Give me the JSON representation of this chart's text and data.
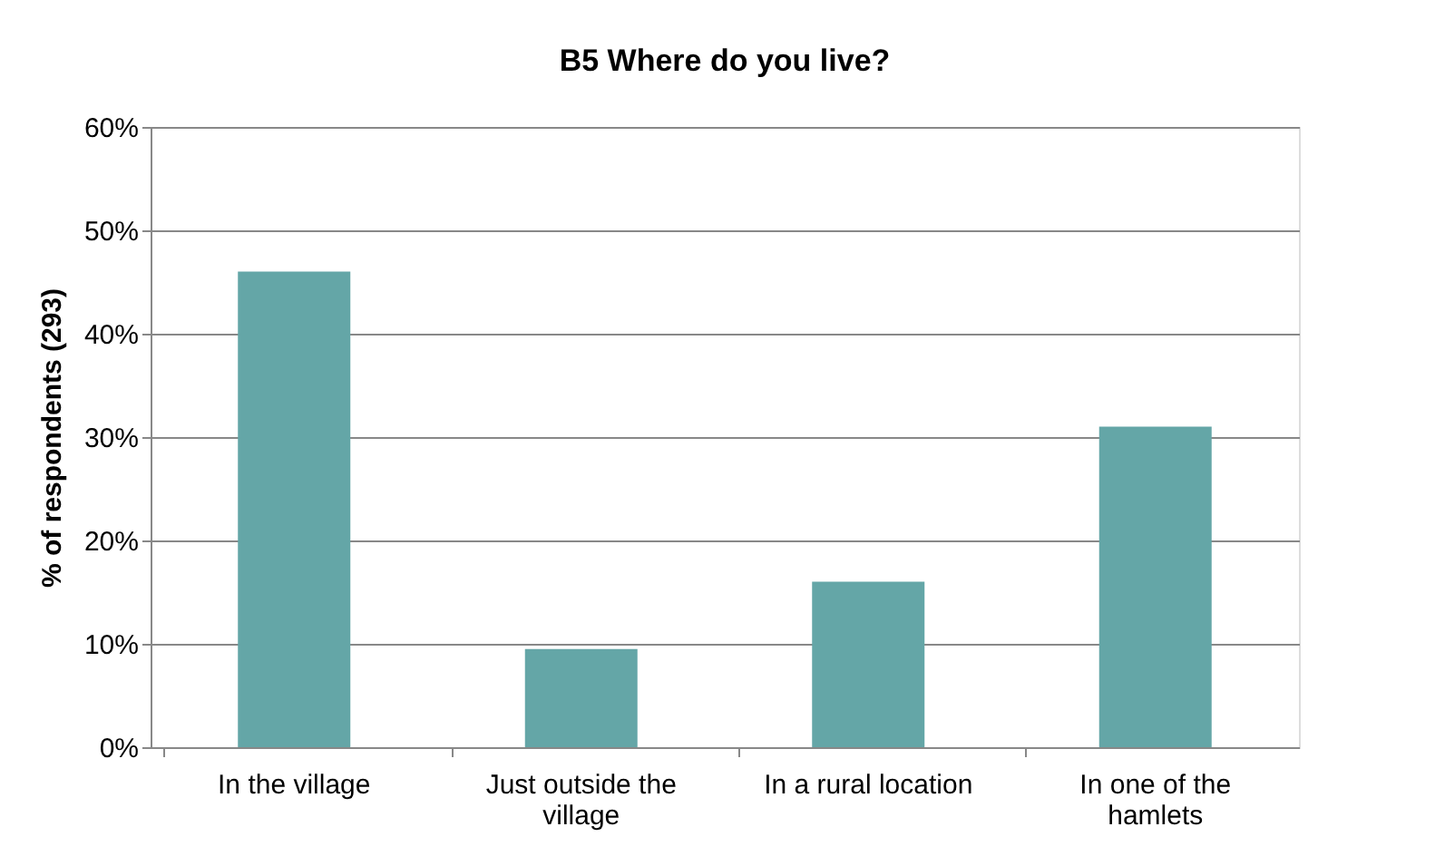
{
  "chart_data": {
    "type": "bar",
    "title": "B5 Where do you live?",
    "ylabel": "% of respondents (293)",
    "categories": [
      "In the village",
      "Just outside the\nvillage",
      "In a rural location",
      "In one of the\nhamlets"
    ],
    "values": [
      46,
      9.5,
      16,
      31
    ],
    "color": "#64a6a7",
    "ylim": [
      0,
      60
    ],
    "yticks": [
      {
        "value": 0,
        "label": "0%"
      },
      {
        "value": 10,
        "label": "10%"
      },
      {
        "value": 20,
        "label": "20%"
      },
      {
        "value": 30,
        "label": "30%"
      },
      {
        "value": 40,
        "label": "40%"
      },
      {
        "value": 50,
        "label": "50%"
      },
      {
        "value": 60,
        "label": "60%"
      }
    ],
    "grid": "y",
    "legend": false
  }
}
